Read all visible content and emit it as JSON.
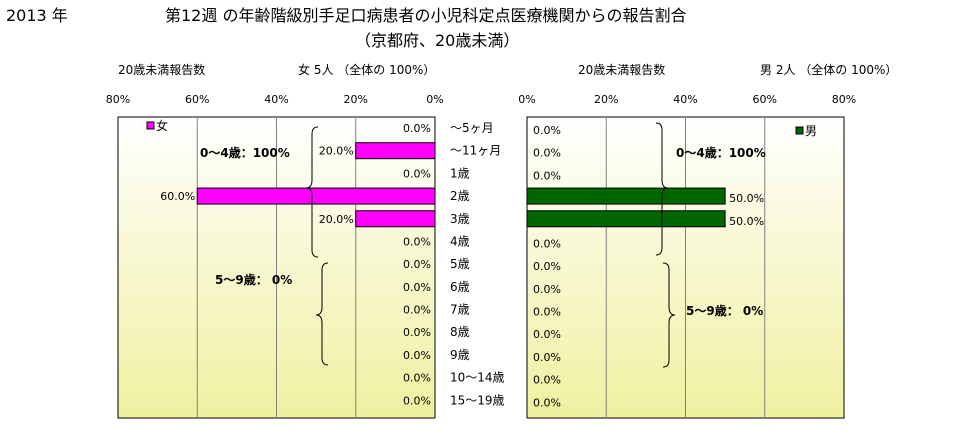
{
  "header": {
    "year": "2013 年",
    "title": "第12週 の年齢階級別手足口病患者の小児科定点医療機関からの報告割合",
    "subtitle": "（京都府、20歳未満）"
  },
  "panels": {
    "female": {
      "count_label": "20歳未満報告数",
      "summary": "女  5人 （全体の  100%）",
      "legend": "女",
      "group1_label": "0～4歳：100%",
      "group2_label": "5～9歳：  0%"
    },
    "male": {
      "count_label": "20歳未満報告数",
      "summary": "男  2人 （全体の  100%）",
      "legend": "男",
      "group1_label": "0～4歳：100%",
      "group2_label": "5～9歳：  0%"
    }
  },
  "colors": {
    "female": "#ff00ff",
    "male": "#006600",
    "bg_top": "#ffffff",
    "bg_bottom": "#f0f0a0"
  },
  "chart_data": {
    "type": "bar",
    "orientation": "horizontal",
    "layout": "population-pyramid",
    "categories": [
      "～5ヶ月",
      "～11ヶ月",
      "1歳",
      "2歳",
      "3歳",
      "4歳",
      "5歳",
      "6歳",
      "7歳",
      "8歳",
      "9歳",
      "10～14歳",
      "15～19歳"
    ],
    "series": [
      {
        "name": "女",
        "values": [
          0,
          20,
          0,
          60,
          20,
          0,
          0,
          0,
          0,
          0,
          0,
          0,
          0
        ],
        "labels": [
          "0.0%",
          "20.0%",
          "0.0%",
          "60.0%",
          "20.0%",
          "0.0%",
          "0.0%",
          "0.0%",
          "0.0%",
          "0.0%",
          "0.0%",
          "0.0%",
          "0.0%"
        ]
      },
      {
        "name": "男",
        "values": [
          0,
          0,
          0,
          50,
          50,
          0,
          0,
          0,
          0,
          0,
          0,
          0,
          0
        ],
        "labels": [
          "0.0%",
          "0.0%",
          "0.0%",
          "50.0%",
          "50.0%",
          "0.0%",
          "0.0%",
          "0.0%",
          "0.0%",
          "0.0%",
          "0.0%",
          "0.0%",
          "0.0%"
        ]
      }
    ],
    "xlim": [
      0,
      80
    ],
    "ticks": [
      "80%",
      "60%",
      "40%",
      "20%",
      "0%"
    ],
    "ticks_right": [
      "0%",
      "20%",
      "40%",
      "60%",
      "80%"
    ],
    "grid": true,
    "legend_position": {
      "female": "top-left",
      "male": "top-right"
    }
  }
}
